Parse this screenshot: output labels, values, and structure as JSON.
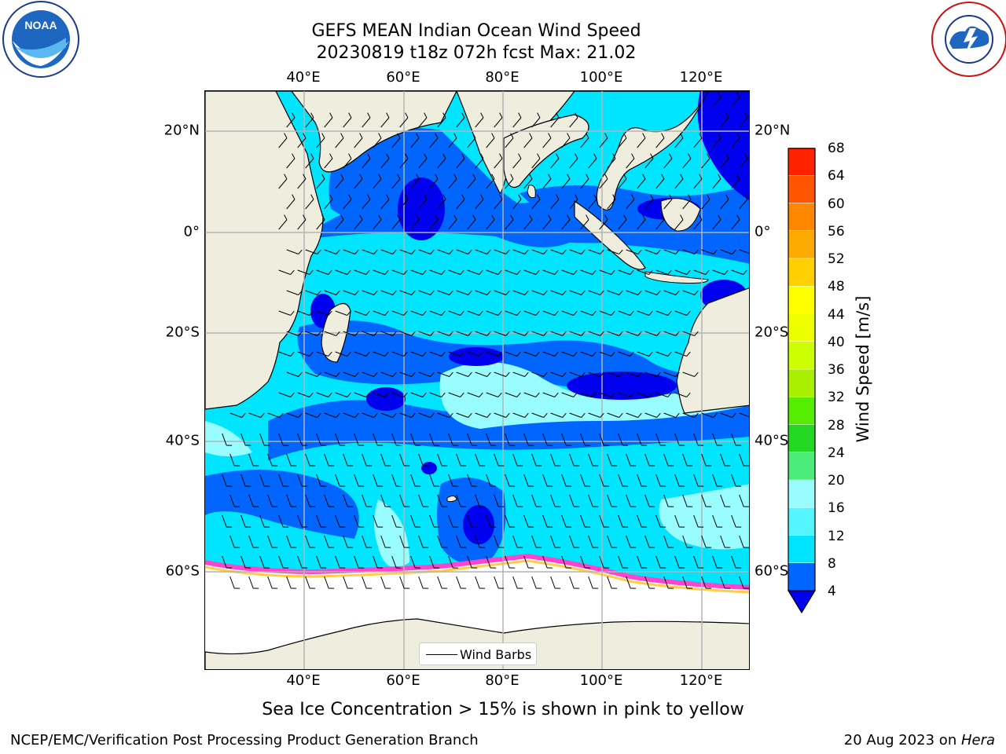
{
  "titles": {
    "line1": "GEFS MEAN Indian Ocean Wind Speed",
    "line2": "20230819 t18z 072h fcst   Max: 21.02"
  },
  "logos": {
    "noaa_text": "NOAA",
    "noaa_ring": "NATIONAL OCEANIC AND ATMOSPHERIC ADMINISTRATION · U.S. DEPARTMENT OF COMMERCE",
    "nws_ring": "NATIONAL WEATHER SERVICE"
  },
  "axes": {
    "lon_ticks": [
      "40°E",
      "60°E",
      "80°E",
      "100°E",
      "120°E"
    ],
    "lat_ticks": [
      "20°N",
      "0°",
      "20°S",
      "40°S",
      "60°S"
    ]
  },
  "chart_data": {
    "type": "heatmap",
    "map_extent": {
      "lon": [
        20,
        130
      ],
      "lat": [
        -75,
        27
      ]
    },
    "field": "Wind Speed [m/s]",
    "max_value": 21.02,
    "colorbar": {
      "label": "Wind Speed [m/s]",
      "levels": [
        4,
        8,
        12,
        16,
        20,
        24,
        28,
        32,
        36,
        40,
        44,
        48,
        52,
        56,
        60,
        64,
        68
      ],
      "colors": [
        "#0066ff",
        "#00e5ff",
        "#55f5ff",
        "#99fcff",
        "#4cec7a",
        "#22d822",
        "#55ee00",
        "#aaee00",
        "#ccff00",
        "#eeff00",
        "#ffff00",
        "#ffd000",
        "#ffaa00",
        "#ff8800",
        "#ff5500",
        "#ff2200"
      ],
      "under_color": "#0000ee"
    },
    "legend": "Wind Barbs"
  },
  "colorbar_ticks": [
    "68",
    "64",
    "60",
    "56",
    "52",
    "48",
    "44",
    "40",
    "36",
    "32",
    "28",
    "24",
    "20",
    "16",
    "12",
    "8",
    "4"
  ],
  "footnote": "Sea Ice Concentration > 15% is shown in pink to yellow",
  "credit": "NCEP/EMC/Verification Post Processing Product Generation Branch",
  "date_text": "20 Aug 2023 on ",
  "date_host": "Hera",
  "colors": {
    "land": "#efedde",
    "ocean_dark": "#0000ee",
    "ocean_mid": "#0066ff",
    "ocean_light": "#00e5ff",
    "ocean_pale": "#99fcff",
    "ice": "#ffffff"
  }
}
